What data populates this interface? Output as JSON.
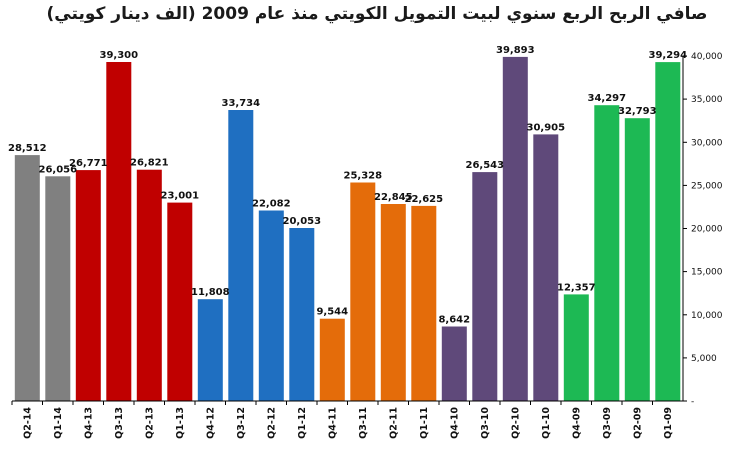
{
  "chart_data": {
    "type": "bar",
    "title": "صافي الربح الربع سنوي لبيت التمويل الكويتي منذ عام 2009 (الف دينار كويتي)",
    "categories": [
      "Q2-14",
      "Q1-14",
      "Q4-13",
      "Q3-13",
      "Q2-13",
      "Q1-13",
      "Q4-12",
      "Q3-12",
      "Q2-12",
      "Q1-12",
      "Q4-11",
      "Q3-11",
      "Q2-11",
      "Q1-11",
      "Q4-10",
      "Q3-10",
      "Q2-10",
      "Q1-10",
      "Q4-09",
      "Q3-09",
      "Q2-09",
      "Q1-09"
    ],
    "values": [
      28512,
      26056,
      26771,
      39300,
      26821,
      23001,
      11808,
      33734,
      22082,
      20053,
      9544,
      25328,
      22845,
      22625,
      8642,
      26543,
      39893,
      30905,
      12357,
      34297,
      32793,
      39294
    ],
    "value_labels": [
      "28,512",
      "26,056",
      "26,771",
      "39,300",
      "26,821",
      "23,001",
      "11,808",
      "33,734",
      "22,082",
      "20,053",
      "9,544",
      "25,328",
      "22,845",
      "22,625",
      "8,642",
      "26,543",
      "39,893",
      "30,905",
      "12,357",
      "34,297",
      "32,793",
      "39,294"
    ],
    "colors": [
      "#808080",
      "#808080",
      "#c00000",
      "#c00000",
      "#c00000",
      "#c00000",
      "#1f6fc1",
      "#1f6fc1",
      "#1f6fc1",
      "#1f6fc1",
      "#e46c0a",
      "#e46c0a",
      "#e46c0a",
      "#e46c0a",
      "#5f497a",
      "#5f497a",
      "#5f497a",
      "#5f497a",
      "#1db954",
      "#1db954",
      "#1db954",
      "#1db954"
    ],
    "ylim": [
      0,
      40000
    ],
    "yticks": [
      0,
      5000,
      10000,
      15000,
      20000,
      25000,
      30000,
      35000,
      40000
    ],
    "ytick_labels": [
      "-",
      "5,000",
      "10,000",
      "15,000",
      "20,000",
      "25,000",
      "30,000",
      "35,000",
      "40,000"
    ],
    "y_axis_side": "right",
    "grid": false,
    "legend": "none"
  }
}
